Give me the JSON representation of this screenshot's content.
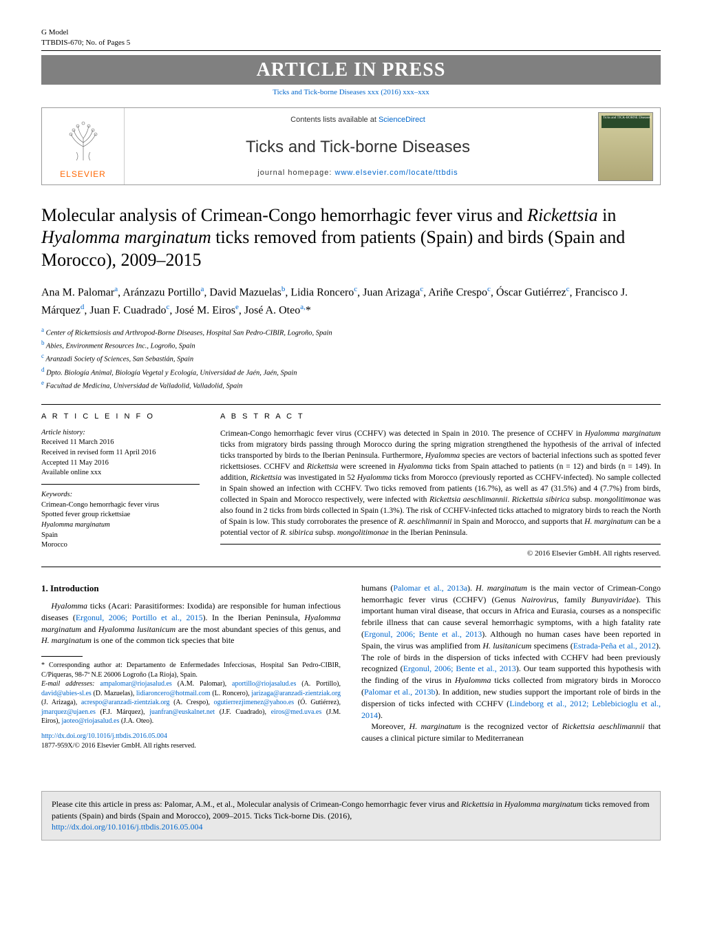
{
  "header": {
    "model_left": "G Model",
    "model_right": "TTBDIS-670;   No. of Pages 5",
    "press_banner": "ARTICLE IN PRESS",
    "journal_cite": "Ticks and Tick-borne Diseases xxx (2016) xxx–xxx"
  },
  "journal_box": {
    "contents_prefix": "Contents lists available at ",
    "contents_link": "ScienceDirect",
    "title": "Ticks and Tick-borne Diseases",
    "homepage_prefix": "journal homepage: ",
    "homepage_link": "www.elsevier.com/locate/ttbdis",
    "elsevier": "ELSEVIER",
    "cover_text": "Ticks and TICK-BORNE Diseases"
  },
  "article": {
    "title_pre": "Molecular analysis of Crimean-Congo hemorrhagic fever virus and ",
    "title_it1": "Rickettsia",
    "title_mid1": " in ",
    "title_it2": "Hyalomma marginatum",
    "title_post": " ticks removed from patients (Spain) and birds (Spain and Morocco), 2009–2015",
    "authors_html": "Ana M. Palomar<sup>a</sup>, Aránzazu Portillo<sup>a</sup>, David Mazuelas<sup>b</sup>, Lidia Roncero<sup>c</sup>, Juan Arizaga<sup>c</sup>, Ariñe Crespo<sup>c</sup>, Óscar Gutiérrez<sup>c</sup>, Francisco J. Márquez<sup>d</sup>, Juan F. Cuadrado<sup>c</sup>, José M. Eiros<sup>e</sup>, José A. Oteo<sup>a,</sup>*",
    "affiliations": [
      {
        "sup": "a",
        "text": "Center of Rickettsiosis and Arthropod-Borne Diseases, Hospital San Pedro-CIBIR, Logroño, Spain"
      },
      {
        "sup": "b",
        "text": "Abies, Environment Resources Inc., Logroño, Spain"
      },
      {
        "sup": "c",
        "text": "Aranzadi Society of Sciences, San Sebastián, Spain"
      },
      {
        "sup": "d",
        "text": "Dpto. Biología Animal, Biología Vegetal y Ecología, Universidad de Jaén, Jaén, Spain"
      },
      {
        "sup": "e",
        "text": "Facultad de Medicina, Universidad de Valladolid, Valladolid, Spain"
      }
    ]
  },
  "article_info": {
    "heading": "a r t i c l e   i n f o",
    "history_label": "Article history:",
    "history": [
      "Received 11 March 2016",
      "Received in revised form 11 April 2016",
      "Accepted 11 May 2016",
      "Available online xxx"
    ],
    "keywords_label": "Keywords:",
    "keywords": [
      "Crimean-Congo hemorrhagic fever virus",
      "Spotted fever group rickettsiae",
      "Hyalomma marginatum",
      "Spain",
      "Morocco"
    ]
  },
  "abstract": {
    "heading": "a b s t r a c t",
    "body": "Crimean-Congo hemorrhagic fever virus (CCHFV) was detected in Spain in 2010. The presence of CCHFV in Hyalomma marginatum ticks from migratory birds passing through Morocco during the spring migration strengthened the hypothesis of the arrival of infected ticks transported by birds to the Iberian Peninsula. Furthermore, Hyalomma species are vectors of bacterial infections such as spotted fever rickettsioses. CCHFV and Rickettsia were screened in Hyalomma ticks from Spain attached to patients (n = 12) and birds (n = 149). In addition, Rickettsia was investigated in 52 Hyalomma ticks from Morocco (previously reported as CCHFV-infected). No sample collected in Spain showed an infection with CCHFV. Two ticks removed from patients (16.7%), as well as 47 (31.5%) and 4 (7.7%) from birds, collected in Spain and Morocco respectively, were infected with Rickettsia aeschlimannii. Rickettsia sibirica subsp. mongolitimonae was also found in 2 ticks from birds collected in Spain (1.3%). The risk of CCHFV-infected ticks attached to migratory birds to reach the North of Spain is low. This study corroborates the presence of R. aeschlimannii in Spain and Morocco, and supports that H. marginatum can be a potential vector of R. sibirica subsp. mongolitimonae in the Iberian Peninsula.",
    "copyright": "© 2016 Elsevier GmbH. All rights reserved."
  },
  "intro": {
    "heading": "1.  Introduction",
    "left_para": "Hyalomma ticks (Acari: Parasitiformes: Ixodida) are responsible for human infectious diseases (Ergonul, 2006; Portillo et al., 2015). In the Iberian Peninsula, Hyalomma marginatum and Hyalomma lusitanicum are the most abundant species of this genus, and H. marginatum is one of the common tick species that bite",
    "right_para1": "humans (Palomar et al., 2013a). H. marginatum is the main vector of Crimean-Congo hemorrhagic fever virus (CCHFV) (Genus Nairovirus, family Bunyaviridae). This important human viral disease, that occurs in Africa and Eurasia, courses as a nonspecific febrile illness that can cause several hemorrhagic symptoms, with a high fatality rate (Ergonul, 2006; Bente et al., 2013). Although no human cases have been reported in Spain, the virus was amplified from H. lusitanicum specimens (Estrada-Peña et al., 2012). The role of birds in the dispersion of ticks infected with CCHFV had been previously recognized (Ergonul, 2006; Bente et al., 2013). Our team supported this hypothesis with the finding of the virus in Hyalomma ticks collected from migratory birds in Morocco (Palomar et al., 2013b). In addition, new studies support the important role of birds in the dispersion of ticks infected with CCHFV (Lindeborg et al., 2012; Leblebicioglu et al., 2014).",
    "right_para2": "Moreover, H. marginatum is the recognized vector of Rickettsia aeschlimannii that causes a clinical picture similar to Mediterranean"
  },
  "footnotes": {
    "corr_label": "* Corresponding author at: Departamento de Enfermedades Infecciosas, Hospital San Pedro-CIBIR, C/Piqueras, 98-7ª N.E 26006 Logroño (La Rioja), Spain.",
    "email_label": "E-mail addresses:",
    "emails": [
      {
        "email": "ampalomar@riojasalud.es",
        "who": "(A.M. Palomar)"
      },
      {
        "email": "aportillo@riojasalud.es",
        "who": "(A. Portillo)"
      },
      {
        "email": "david@abies-sl.es",
        "who": "(D. Mazuelas)"
      },
      {
        "email": "lidiaroncero@hotmail.com",
        "who": "(L. Roncero)"
      },
      {
        "email": "jarizaga@aranzadi-zientziak.org",
        "who": "(J. Arizaga)"
      },
      {
        "email": "acrespo@aranzadi-zientziak.org",
        "who": "(A. Crespo)"
      },
      {
        "email": "ogutierrezjimenez@yahoo.es",
        "who": "(Ó. Gutiérrez)"
      },
      {
        "email": "jmarquez@ujaen.es",
        "who": "(F.J. Márquez)"
      },
      {
        "email": "juanfran@euskalnet.net",
        "who": "(J.F. Cuadrado)"
      },
      {
        "email": "eiros@med.uva.es",
        "who": "(J.M. Eiros)"
      },
      {
        "email": "jaoteo@riojasalud.es",
        "who": "(J.A. Oteo)."
      }
    ],
    "doi": "http://dx.doi.org/10.1016/j.ttbdis.2016.05.004",
    "issn": "1877-959X/© 2016 Elsevier GmbH. All rights reserved."
  },
  "citebox": {
    "text_pre": "Please cite this article in press as: Palomar, A.M., et al., Molecular analysis of Crimean-Congo hemorrhagic fever virus and ",
    "text_it1": "Rickettsia",
    "text_mid": " in ",
    "text_it2": "Hyalomma marginatum",
    "text_post": " ticks removed from patients (Spain) and birds (Spain and Morocco), 2009–2015. Ticks Tick-borne Dis. (2016), ",
    "link": "http://dx.doi.org/10.1016/j.ttbdis.2016.05.004"
  },
  "colors": {
    "link": "#0066cc",
    "banner_bg": "#808080",
    "elsevier": "#ff6600",
    "citebox_bg": "#e8e8e8"
  }
}
